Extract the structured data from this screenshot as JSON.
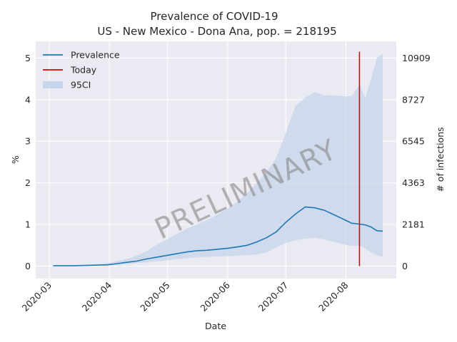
{
  "chart_data": {
    "type": "line",
    "title": "Prevalence of COVID-19",
    "subtitle": "US - New Mexico - Dona Ana, pop. = 218195",
    "xlabel": "Date",
    "ylabel": "%",
    "ylabel_right": "# of infections",
    "watermark": "PRELIMINARY",
    "x_ticks": [
      "2020-03",
      "2020-04",
      "2020-05",
      "2020-06",
      "2020-07",
      "2020-08"
    ],
    "y_ticks": [
      0,
      1,
      2,
      3,
      4,
      5
    ],
    "y2_ticks": [
      0,
      2181,
      4363,
      6545,
      8727,
      10909
    ],
    "xlim": [
      "2020-02-23",
      "2020-08-27"
    ],
    "ylim": [
      -0.3,
      5.4
    ],
    "grid": true,
    "legend_position": "top-left",
    "today": "2020-08-08",
    "today_range": [
      0,
      5.15
    ],
    "colors": {
      "prevalence": "#1f77b4",
      "today": "#e00000",
      "ci": "#c6d6ea",
      "plot_bg": "#eaeaf2",
      "grid": "#ffffff"
    },
    "legend": [
      {
        "key": "prevalence",
        "label": "Prevalence"
      },
      {
        "key": "today",
        "label": "Today"
      },
      {
        "key": "ci",
        "label": "95CI"
      }
    ],
    "series": [
      {
        "name": "Prevalence",
        "x": [
          "2020-03-03",
          "2020-03-13",
          "2020-03-23",
          "2020-03-31",
          "2020-04-05",
          "2020-04-10",
          "2020-04-15",
          "2020-04-20",
          "2020-04-25",
          "2020-05-01",
          "2020-05-06",
          "2020-05-11",
          "2020-05-16",
          "2020-05-21",
          "2020-05-26",
          "2020-06-01",
          "2020-06-06",
          "2020-06-11",
          "2020-06-16",
          "2020-06-21",
          "2020-06-26",
          "2020-07-01",
          "2020-07-06",
          "2020-07-11",
          "2020-07-16",
          "2020-07-21",
          "2020-07-26",
          "2020-07-31",
          "2020-08-04",
          "2020-08-08",
          "2020-08-11",
          "2020-08-14",
          "2020-08-17",
          "2020-08-20"
        ],
        "values": [
          0.01,
          0.01,
          0.02,
          0.03,
          0.06,
          0.09,
          0.12,
          0.17,
          0.21,
          0.26,
          0.3,
          0.34,
          0.37,
          0.38,
          0.4,
          0.43,
          0.46,
          0.5,
          0.58,
          0.68,
          0.82,
          1.05,
          1.25,
          1.42,
          1.4,
          1.34,
          1.23,
          1.12,
          1.03,
          1.01,
          0.99,
          0.94,
          0.85,
          0.84
        ]
      },
      {
        "name": "95CI",
        "x": [
          "2020-03-03",
          "2020-03-13",
          "2020-03-23",
          "2020-03-31",
          "2020-04-05",
          "2020-04-10",
          "2020-04-15",
          "2020-04-20",
          "2020-04-25",
          "2020-05-01",
          "2020-05-06",
          "2020-05-11",
          "2020-05-16",
          "2020-05-21",
          "2020-05-26",
          "2020-06-01",
          "2020-06-06",
          "2020-06-11",
          "2020-06-16",
          "2020-06-21",
          "2020-06-26",
          "2020-07-01",
          "2020-07-06",
          "2020-07-11",
          "2020-07-16",
          "2020-07-21",
          "2020-07-26",
          "2020-07-31",
          "2020-08-04",
          "2020-08-08",
          "2020-08-11",
          "2020-08-14",
          "2020-08-17",
          "2020-08-20"
        ],
        "lower": [
          0.01,
          0.01,
          0.02,
          0.02,
          0.03,
          0.05,
          0.07,
          0.09,
          0.11,
          0.14,
          0.17,
          0.19,
          0.21,
          0.22,
          0.23,
          0.24,
          0.25,
          0.26,
          0.28,
          0.33,
          0.45,
          0.55,
          0.62,
          0.66,
          0.68,
          0.64,
          0.58,
          0.52,
          0.48,
          0.49,
          0.42,
          0.33,
          0.26,
          0.22
        ],
        "upper": [
          0.01,
          0.02,
          0.04,
          0.07,
          0.12,
          0.17,
          0.25,
          0.35,
          0.5,
          0.65,
          0.78,
          0.9,
          1.0,
          1.1,
          1.22,
          1.38,
          1.55,
          1.75,
          2.0,
          2.25,
          2.6,
          3.2,
          3.85,
          4.05,
          4.18,
          4.1,
          4.1,
          4.08,
          4.08,
          4.35,
          4.05,
          4.5,
          5.0,
          5.1
        ]
      }
    ]
  }
}
